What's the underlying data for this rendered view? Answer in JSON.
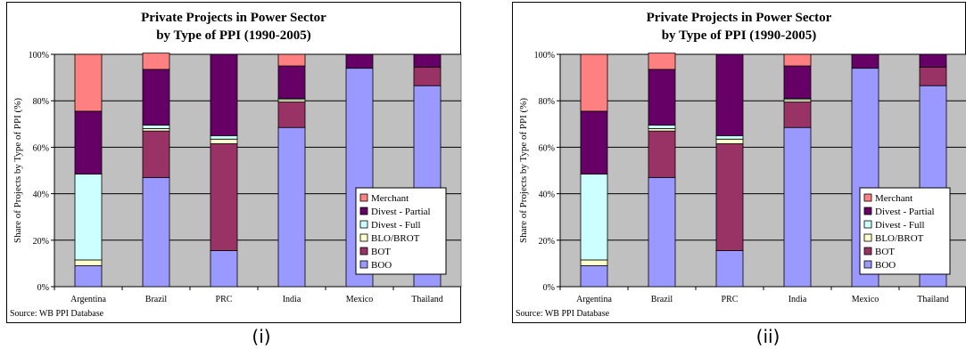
{
  "source_note": "Source: WB PPI Database",
  "panels": [
    {
      "label": "(i)"
    },
    {
      "label": "(ii)"
    }
  ],
  "chart_data": [
    {
      "type": "bar",
      "stacked": true,
      "title": "Private Projects in Power Sector",
      "subtitle": "by Type of PPI (1990-2005)",
      "xlabel": "",
      "ylabel": "Share of Projects by Type of PPI (%)",
      "ylim": [
        0,
        100
      ],
      "yticks": [
        "0%",
        "20%",
        "40%",
        "60%",
        "80%",
        "100%"
      ],
      "grid": true,
      "legend": "right",
      "categories": [
        "Argentina",
        "Brazil",
        "PRC",
        "India",
        "Mexico",
        "Thailand"
      ],
      "series": [
        {
          "name": "BOO",
          "color": "#9999ff",
          "values": [
            9,
            47,
            15.5,
            68.5,
            94,
            86.5
          ]
        },
        {
          "name": "BOT",
          "color": "#993366",
          "values": [
            0,
            20,
            46,
            11,
            0,
            8
          ]
        },
        {
          "name": "BLO/BROT",
          "color": "#ffffcc",
          "values": [
            2.5,
            1,
            2,
            1,
            0,
            0
          ]
        },
        {
          "name": "Divest - Full",
          "color": "#ccffff",
          "values": [
            37,
            1.5,
            1.5,
            0.5,
            0,
            0
          ]
        },
        {
          "name": "Divest - Partial",
          "color": "#660066",
          "values": [
            27,
            24,
            35,
            14,
            6,
            5.5
          ]
        },
        {
          "name": "Merchant",
          "color": "#ff8080",
          "values": [
            24.5,
            7,
            0,
            5,
            0,
            0
          ]
        }
      ],
      "plot_bg": "#c0c0c0"
    },
    {
      "type": "bar",
      "stacked": true,
      "title": "Private Projects in Power Sector",
      "subtitle": "by Type of PPI (1990-2005)",
      "xlabel": "",
      "ylabel": "Share of Projects by Type of PPI (%)",
      "ylim": [
        0,
        100
      ],
      "yticks": [
        "0%",
        "20%",
        "40%",
        "60%",
        "80%",
        "100%"
      ],
      "grid": true,
      "legend": "right",
      "categories": [
        "Argentina",
        "Brazil",
        "PRC",
        "India",
        "Mexico",
        "Thailand"
      ],
      "series": [
        {
          "name": "BOO",
          "color": "#9999ff",
          "values": [
            9,
            47,
            15.5,
            68.5,
            94,
            86.5
          ]
        },
        {
          "name": "BOT",
          "color": "#993366",
          "values": [
            0,
            20,
            46,
            11,
            0,
            8
          ]
        },
        {
          "name": "BLO/BROT",
          "color": "#ffffcc",
          "values": [
            2.5,
            1,
            2,
            1,
            0,
            0
          ]
        },
        {
          "name": "Divest - Full",
          "color": "#ccffff",
          "values": [
            37,
            1.5,
            1.5,
            0.5,
            0,
            0
          ]
        },
        {
          "name": "Divest - Partial",
          "color": "#660066",
          "values": [
            27,
            24,
            35,
            14,
            6,
            5.5
          ]
        },
        {
          "name": "Merchant",
          "color": "#ff8080",
          "values": [
            24.5,
            7,
            0,
            5,
            0,
            0
          ]
        }
      ],
      "plot_bg": "#c0c0c0"
    }
  ]
}
